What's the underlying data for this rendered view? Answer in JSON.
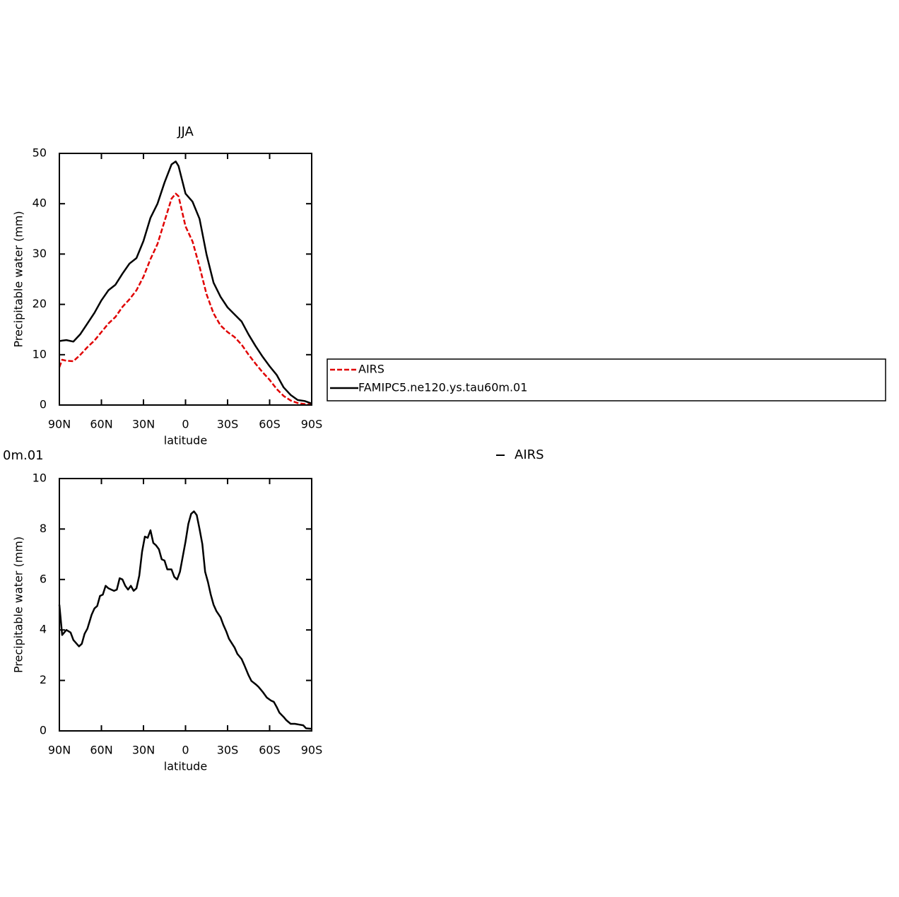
{
  "chart_data": [
    {
      "type": "line",
      "title": "JJA",
      "xlabel": "latitude",
      "ylabel": "Precipitable water (mm)",
      "xlim": [
        90,
        -90
      ],
      "ylim": [
        0,
        50
      ],
      "xticks": [
        {
          "value": 90,
          "label": "90N"
        },
        {
          "value": 60,
          "label": "60N"
        },
        {
          "value": 30,
          "label": "30N"
        },
        0,
        {
          "value": -30,
          "label": "30S"
        },
        {
          "value": -60,
          "label": "60S"
        },
        {
          "value": -90,
          "label": "90S"
        }
      ],
      "yticks": [
        0,
        10,
        20,
        30,
        40,
        50
      ],
      "legend": "right",
      "x": [
        90,
        88,
        85,
        80,
        75,
        70,
        65,
        60,
        55,
        50,
        45,
        40,
        35,
        30,
        25,
        20,
        15,
        10,
        7,
        5,
        0,
        -5,
        -10,
        -15,
        -20,
        -25,
        -30,
        -35,
        -40,
        -45,
        -50,
        -55,
        -60,
        -65,
        -70,
        -75,
        -80,
        -85,
        -90
      ],
      "series": [
        {
          "name": "AIRS",
          "color": "#e00000",
          "dash": true,
          "values": [
            7.5,
            9,
            8.8,
            8.7,
            10,
            11.5,
            12.8,
            14.5,
            16.2,
            17.5,
            19.5,
            21,
            22.8,
            25.5,
            29,
            32,
            36.5,
            41,
            42,
            41.5,
            35.5,
            32.5,
            27.5,
            22,
            18.2,
            15.8,
            14.5,
            13.5,
            12,
            10,
            8.2,
            6.5,
            5,
            3.2,
            1.8,
            0.9,
            0.4,
            0.2,
            0.1
          ]
        },
        {
          "name": "FAMIPC5.ne120.ys.tau60m.01",
          "color": "#000000",
          "dash": false,
          "values": [
            12.7,
            12.8,
            12.9,
            12.6,
            14.1,
            16.2,
            18.3,
            20.8,
            22.8,
            23.9,
            26.1,
            28.1,
            29.2,
            32.6,
            37.2,
            40,
            44.2,
            47.8,
            48.4,
            47.5,
            42,
            40.4,
            37,
            29.9,
            24.3,
            21.5,
            19.4,
            18,
            16.6,
            14,
            11.7,
            9.6,
            7.7,
            6,
            3.5,
            2,
            1,
            0.8,
            0.3
          ]
        }
      ]
    },
    {
      "type": "line",
      "xlabel": "latitude",
      "ylabel": "Precipitable water (mm)",
      "annotations": [
        "0m.01"
      ],
      "xlim": [
        90,
        -90
      ],
      "ylim": [
        0,
        10
      ],
      "xticks": [
        {
          "value": 90,
          "label": "90N"
        },
        {
          "value": 60,
          "label": "60N"
        },
        {
          "value": 30,
          "label": "30N"
        },
        0,
        {
          "value": -30,
          "label": "30S"
        },
        {
          "value": -60,
          "label": "60S"
        },
        {
          "value": -90,
          "label": "90S"
        }
      ],
      "yticks": [
        0,
        2,
        4,
        6,
        8,
        10
      ],
      "x": [
        90,
        88,
        85,
        82,
        80,
        76,
        74,
        72,
        70,
        67,
        65,
        63,
        61,
        59,
        57,
        55,
        53,
        51,
        49,
        47,
        45,
        43,
        41,
        39,
        37,
        35,
        33,
        31,
        29,
        27,
        25,
        23,
        21,
        19,
        17,
        15,
        13,
        10,
        8,
        6,
        4,
        2,
        0,
        -2,
        -4,
        -6,
        -8,
        -10,
        -12,
        -14,
        -16,
        -18,
        -20,
        -22,
        -25,
        -27,
        -29,
        -31,
        -35,
        -37,
        -40,
        -42,
        -45,
        -47,
        -50,
        -52,
        -55,
        -58,
        -61,
        -63,
        -65,
        -67,
        -70,
        -72,
        -75,
        -78,
        -81,
        -84,
        -86,
        -90
      ],
      "series": [
        {
          "name": "AIRS",
          "color": "#000000",
          "dash": false,
          "values": [
            5.0,
            3.8,
            4.0,
            3.9,
            3.6,
            3.35,
            3.45,
            3.85,
            4.05,
            4.6,
            4.85,
            4.95,
            5.35,
            5.4,
            5.75,
            5.65,
            5.6,
            5.55,
            5.6,
            6.05,
            6.0,
            5.75,
            5.6,
            5.75,
            5.55,
            5.65,
            6.15,
            7.1,
            7.7,
            7.65,
            7.95,
            7.45,
            7.35,
            7.2,
            6.8,
            6.75,
            6.4,
            6.4,
            6.1,
            6.0,
            6.3,
            6.9,
            7.5,
            8.2,
            8.6,
            8.7,
            8.55,
            8.0,
            7.4,
            6.3,
            5.9,
            5.4,
            5.0,
            4.75,
            4.5,
            4.2,
            3.95,
            3.65,
            3.3,
            3.05,
            2.85,
            2.6,
            2.2,
            1.98,
            1.85,
            1.75,
            1.55,
            1.32,
            1.2,
            1.15,
            0.95,
            0.72,
            0.55,
            0.42,
            0.28,
            0.28,
            0.25,
            0.22,
            0.1,
            0.08
          ]
        }
      ]
    }
  ]
}
